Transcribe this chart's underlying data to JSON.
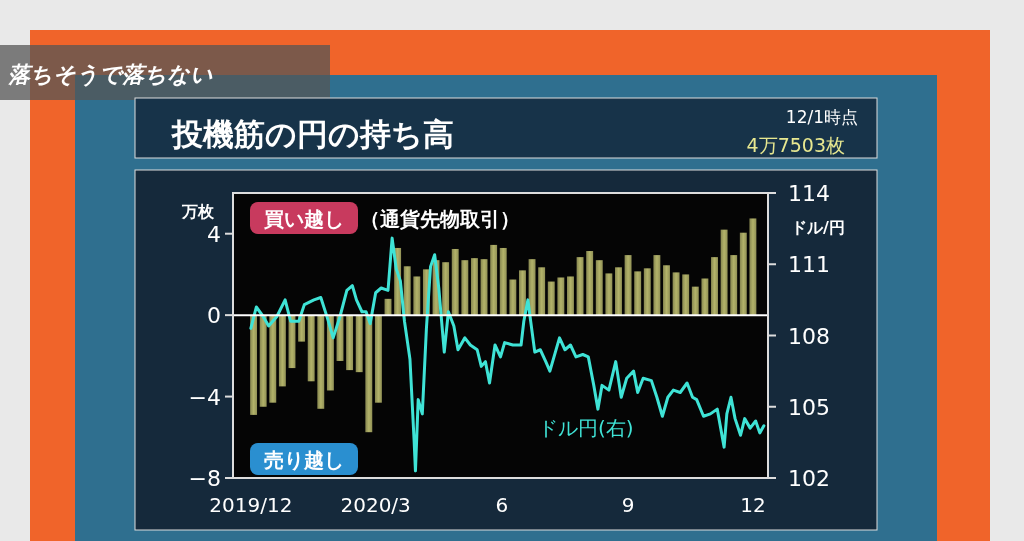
{
  "chart_data": {
    "type": "bar",
    "title": "投機筋の円の持ち高",
    "ylabel": "万枚",
    "y2label": "ドル/円",
    "annotations": [
      "落ちそうで落ちない",
      "12/1時点",
      "4万7503枚",
      "買い越し",
      "（通貨先物取引）",
      "売り越し"
    ],
    "xlim": [
      "2019-11-18",
      "2020-12-12"
    ],
    "xticks": [
      {
        "value": "2019-12-01",
        "label": "2019/12"
      },
      {
        "value": "2020-03-01",
        "label": "2020/3"
      },
      {
        "value": "2020-06-01",
        "label": "6"
      },
      {
        "value": "2020-09-01",
        "label": "9"
      },
      {
        "value": "2020-12-01",
        "label": "12"
      }
    ],
    "ylim": [
      -8,
      6
    ],
    "yticks": [
      -8,
      -4,
      0,
      4
    ],
    "y2lim": [
      102,
      114
    ],
    "y2ticks": [
      102,
      105,
      108,
      111,
      114
    ],
    "ref_lines": [
      {
        "axis": "y",
        "value": 0,
        "color": "#ffffff"
      }
    ],
    "series": [
      {
        "color": "#b3b36a",
        "x": [
          "2019-12-03",
          "2019-12-10",
          "2019-12-17",
          "2019-12-24",
          "2019-12-31",
          "2020-01-07",
          "2020-01-14",
          "2020-01-21",
          "2020-01-28",
          "2020-02-04",
          "2020-02-11",
          "2020-02-18",
          "2020-02-25",
          "2020-03-03",
          "2020-03-10",
          "2020-03-17",
          "2020-03-24",
          "2020-03-31",
          "2020-04-07",
          "2020-04-14",
          "2020-04-21",
          "2020-04-28",
          "2020-05-05",
          "2020-05-12",
          "2020-05-19",
          "2020-05-26",
          "2020-06-02",
          "2020-06-09",
          "2020-06-16",
          "2020-06-23",
          "2020-06-30",
          "2020-07-07",
          "2020-07-14",
          "2020-07-21",
          "2020-07-28",
          "2020-08-04",
          "2020-08-11",
          "2020-08-18",
          "2020-08-25",
          "2020-09-01",
          "2020-09-08",
          "2020-09-15",
          "2020-09-22",
          "2020-09-29",
          "2020-10-06",
          "2020-10-13",
          "2020-10-20",
          "2020-10-27",
          "2020-11-03",
          "2020-11-10",
          "2020-11-17",
          "2020-11-24",
          "2020-12-01"
        ],
        "values": [
          -4.9,
          -4.5,
          -4.3,
          -3.5,
          -2.6,
          -1.3,
          -3.25,
          -4.6,
          -3.7,
          -2.25,
          -2.7,
          -2.8,
          -5.75,
          -4.3,
          0.8,
          3.3,
          2.4,
          1.9,
          2.25,
          2.7,
          2.6,
          3.25,
          2.7,
          2.8,
          2.75,
          3.45,
          3.3,
          1.75,
          2.2,
          2.75,
          2.35,
          1.65,
          1.85,
          1.9,
          2.85,
          3.15,
          2.7,
          2.05,
          2.35,
          2.95,
          2.15,
          2.3,
          2.95,
          2.45,
          2.1,
          2.0,
          1.4,
          1.8,
          2.85,
          4.2,
          2.95,
          4.05,
          4.75
        ]
      },
      {
        "type": "line",
        "name": "ドル円(右)",
        "color": "#3fe3d6",
        "axis": "y2",
        "x": [
          "2019-12-01",
          "2019-12-05",
          "2019-12-10",
          "2019-12-14",
          "2019-12-20",
          "2019-12-26",
          "2019-12-30",
          "2020-01-05",
          "2020-01-09",
          "2020-01-16",
          "2020-01-21",
          "2020-01-26",
          "2020-01-30",
          "2020-02-04",
          "2020-02-09",
          "2020-02-13",
          "2020-02-16",
          "2020-02-20",
          "2020-02-23",
          "2020-02-26",
          "2020-03-01",
          "2020-03-05",
          "2020-03-10",
          "2020-03-13",
          "2020-03-16",
          "2020-03-19",
          "2020-03-22",
          "2020-03-26",
          "2020-03-29",
          "2020-03-30",
          "2020-04-01",
          "2020-04-04",
          "2020-04-07",
          "2020-04-10",
          "2020-04-13",
          "2020-04-16",
          "2020-04-20",
          "2020-04-23",
          "2020-04-27",
          "2020-04-30",
          "2020-05-05",
          "2020-05-09",
          "2020-05-14",
          "2020-05-17",
          "2020-05-20",
          "2020-05-23",
          "2020-05-27",
          "2020-05-31",
          "2020-06-03",
          "2020-06-09",
          "2020-06-15",
          "2020-06-17",
          "2020-06-20",
          "2020-06-22",
          "2020-06-25",
          "2020-06-29",
          "2020-07-03",
          "2020-07-06",
          "2020-07-10",
          "2020-07-13",
          "2020-07-17",
          "2020-07-21",
          "2020-07-25",
          "2020-07-30",
          "2020-08-03",
          "2020-08-07",
          "2020-08-10",
          "2020-08-13",
          "2020-08-18",
          "2020-08-23",
          "2020-08-27",
          "2020-08-31",
          "2020-09-05",
          "2020-09-08",
          "2020-09-12",
          "2020-09-18",
          "2020-09-22",
          "2020-09-26",
          "2020-09-30",
          "2020-10-04",
          "2020-10-09",
          "2020-10-14",
          "2020-10-18",
          "2020-10-21",
          "2020-10-26",
          "2020-10-31",
          "2020-11-05",
          "2020-11-10",
          "2020-11-12",
          "2020-11-15",
          "2020-11-18",
          "2020-11-22",
          "2020-11-25",
          "2020-11-29",
          "2020-12-03",
          "2020-12-06",
          "2020-12-09"
        ],
        "values": [
          108.3,
          109.2,
          108.8,
          108.4,
          108.8,
          109.5,
          108.6,
          108.6,
          109.3,
          109.5,
          109.6,
          108.7,
          107.9,
          108.8,
          109.9,
          110.1,
          109.5,
          109.0,
          109.0,
          108.5,
          109.8,
          110.0,
          109.9,
          112.1,
          110.8,
          110.3,
          108.6,
          107.0,
          103.6,
          102.3,
          105.3,
          104.7,
          108.3,
          110.9,
          111.4,
          110.0,
          107.3,
          109.0,
          108.4,
          107.4,
          107.9,
          107.6,
          107.4,
          106.7,
          106.9,
          106.0,
          107.6,
          107.1,
          107.7,
          107.6,
          107.6,
          108.6,
          109.5,
          108.6,
          107.3,
          107.4,
          106.9,
          106.5,
          107.3,
          107.9,
          107.4,
          107.6,
          107.1,
          107.2,
          107.1,
          105.9,
          104.9,
          105.9,
          105.7,
          106.9,
          105.4,
          106.2,
          106.5,
          105.6,
          106.2,
          106.1,
          105.4,
          104.6,
          105.4,
          105.7,
          105.6,
          106.0,
          105.4,
          105.3,
          104.6,
          104.7,
          104.9,
          103.3,
          104.7,
          105.4,
          104.5,
          103.8,
          104.5,
          104.1,
          104.4,
          103.9,
          104.2
        ]
      }
    ]
  }
}
